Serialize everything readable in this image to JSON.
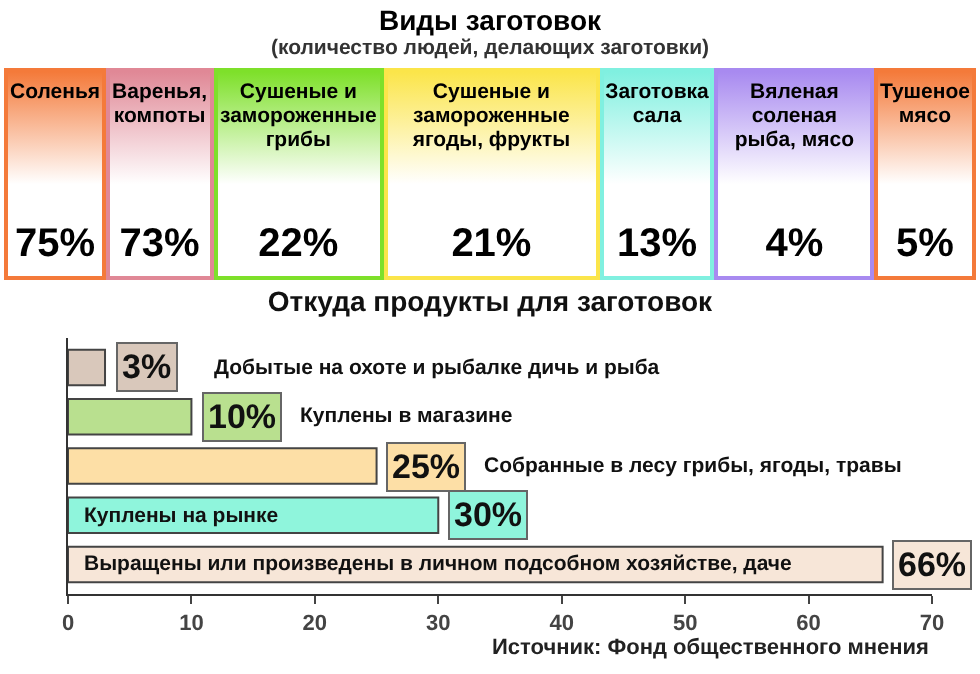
{
  "chart_data": [
    {
      "type": "other",
      "title": "Виды заготовок",
      "subtitle": "(количество людей, делающих заготовки)",
      "categories": [
        "Соленья",
        "Варенья, компоты",
        "Сушеные и замороженные грибы",
        "Сушеные и замороженные ягоды, фрукты",
        "Заготовка сала",
        "Вяленая соленая рыба, мясо",
        "Тушеное мясо"
      ],
      "values": [
        75,
        73,
        22,
        21,
        13,
        4,
        5
      ],
      "value_labels": [
        "75%",
        "73%",
        "22%",
        "21%",
        "13%",
        "4%",
        "5%"
      ],
      "colors": [
        "#f47a3a",
        "#e08896",
        "#7ee02a",
        "#fbe54a",
        "#80f0e0",
        "#a88af0",
        "#f47a3a"
      ]
    },
    {
      "type": "bar",
      "orientation": "horizontal",
      "title": "Откуда продукты для заготовок",
      "categories": [
        "Добытые на охоте и рыбалке дичь и рыба",
        "Куплены в магазине",
        "Собранные в лесу грибы, ягоды, травы",
        "Куплены на рынке",
        "Выращены или произведены в личном подсобном хозяйстве, даче"
      ],
      "values": [
        3,
        10,
        25,
        30,
        66
      ],
      "value_labels": [
        "3%",
        "10%",
        "25%",
        "30%",
        "66%"
      ],
      "colors": [
        "#d9c8bb",
        "#b9e08f",
        "#fddfa6",
        "#8ff5dc",
        "#f7e6d8"
      ],
      "xlim": [
        0,
        70
      ],
      "xticks": [
        0,
        10,
        20,
        30,
        40,
        50,
        60,
        70
      ],
      "tick_labels": "x",
      "annotations": [
        "Источник: Фонд общественного мнения"
      ]
    }
  ]
}
